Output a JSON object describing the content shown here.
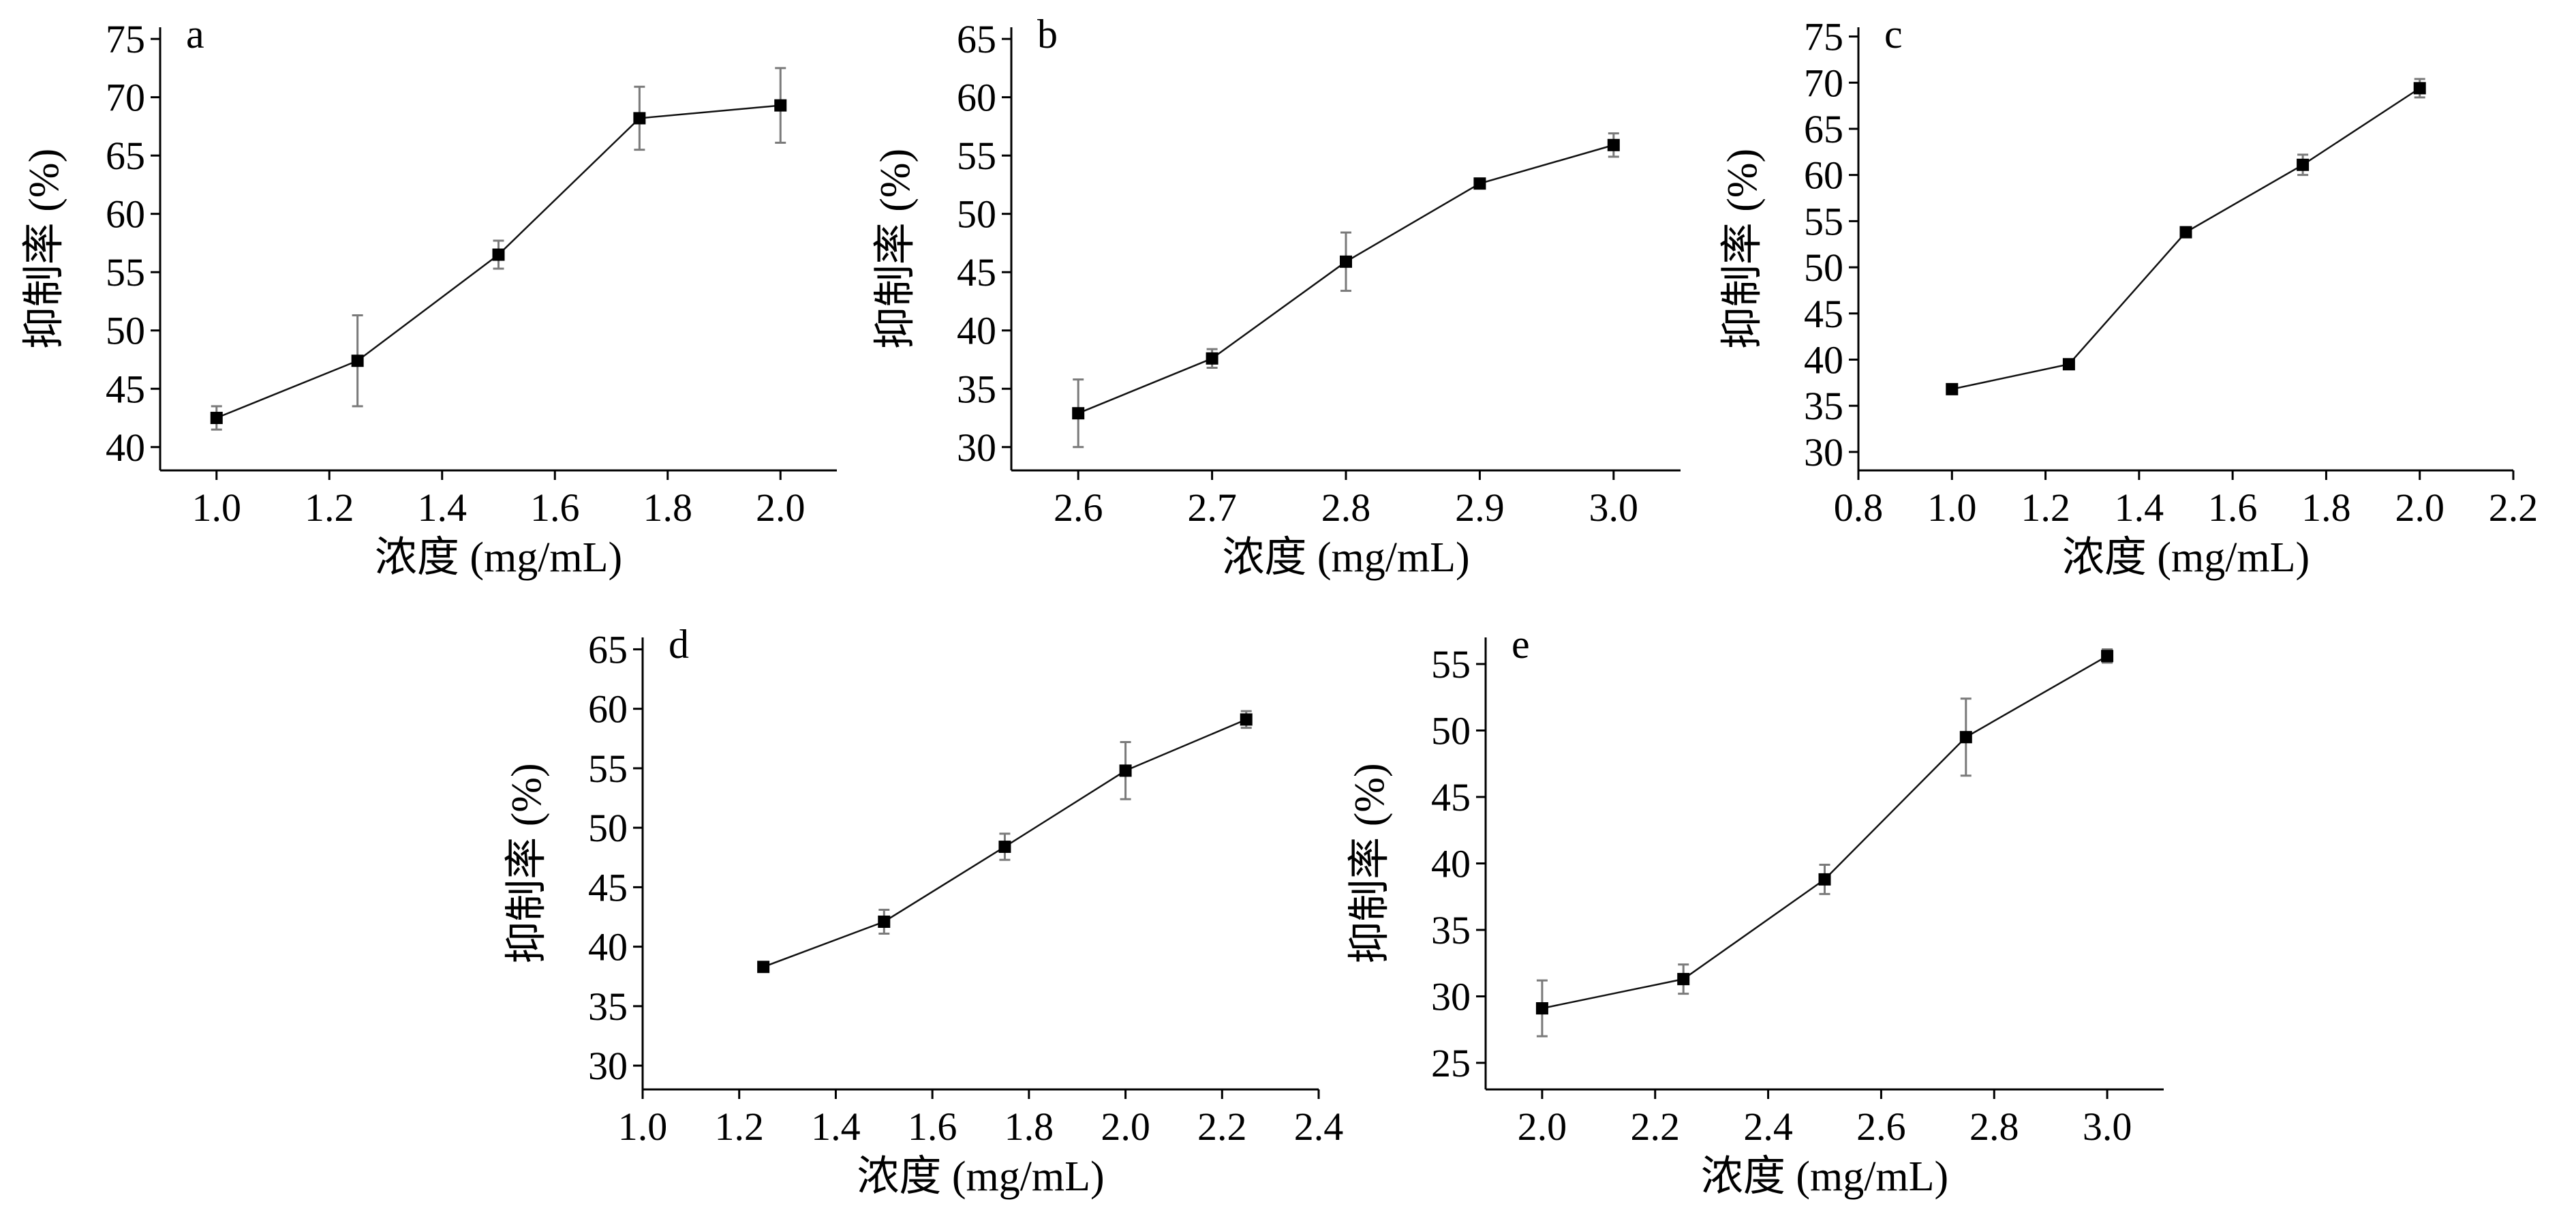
{
  "chart_data": [
    {
      "type": "line",
      "panel_label": "a",
      "xlabel": "浓度 (mg/mL)",
      "ylabel": "抑制率 (%)",
      "xlim": [
        0.9,
        2.1
      ],
      "ylim": [
        38,
        76
      ],
      "xticks": [
        1.0,
        1.2,
        1.4,
        1.6,
        1.8,
        2.0
      ],
      "xtick_labels": [
        "1.0",
        "1.2",
        "1.4",
        "1.6",
        "1.8",
        "2.0"
      ],
      "yticks": [
        40,
        45,
        50,
        55,
        60,
        65,
        70,
        75
      ],
      "ytick_labels": [
        "40",
        "45",
        "50",
        "55",
        "60",
        "65",
        "70",
        "75"
      ],
      "series": [
        {
          "x": [
            1.0,
            1.25,
            1.5,
            1.75,
            2.0
          ],
          "y": [
            42.5,
            47.4,
            56.5,
            68.2,
            69.3
          ],
          "err": [
            1.0,
            3.9,
            1.2,
            2.7,
            3.2
          ]
        }
      ]
    },
    {
      "type": "line",
      "panel_label": "b",
      "xlabel": "浓度 (mg/mL)",
      "ylabel": "抑制率 (%)",
      "xlim": [
        2.55,
        3.05
      ],
      "ylim": [
        28,
        66
      ],
      "xticks": [
        2.6,
        2.7,
        2.8,
        2.9,
        3.0
      ],
      "xtick_labels": [
        "2.6",
        "2.7",
        "2.8",
        "2.9",
        "3.0"
      ],
      "yticks": [
        30,
        35,
        40,
        45,
        50,
        55,
        60,
        65
      ],
      "ytick_labels": [
        "30",
        "35",
        "40",
        "45",
        "50",
        "55",
        "60",
        "65"
      ],
      "series": [
        {
          "x": [
            2.6,
            2.7,
            2.8,
            2.9,
            3.0
          ],
          "y": [
            32.9,
            37.6,
            45.9,
            52.6,
            55.9
          ],
          "err": [
            2.9,
            0.8,
            2.5,
            0.4,
            1.0
          ]
        }
      ]
    },
    {
      "type": "line",
      "panel_label": "c",
      "xlabel": "浓度 (mg/mL)",
      "ylabel": "抑制率 (%)",
      "xlim": [
        0.8,
        2.2
      ],
      "ylim": [
        28,
        76
      ],
      "xticks": [
        0.8,
        1.0,
        1.2,
        1.4,
        1.6,
        1.8,
        2.0,
        2.2
      ],
      "xtick_labels": [
        "0.8",
        "1.0",
        "1.2",
        "1.4",
        "1.6",
        "1.8",
        "2.0",
        "2.2"
      ],
      "yticks": [
        30,
        35,
        40,
        45,
        50,
        55,
        60,
        65,
        70,
        75
      ],
      "ytick_labels": [
        "30",
        "35",
        "40",
        "45",
        "50",
        "55",
        "60",
        "65",
        "70",
        "75"
      ],
      "series": [
        {
          "x": [
            1.0,
            1.25,
            1.5,
            1.75,
            2.0
          ],
          "y": [
            36.8,
            39.5,
            53.8,
            61.1,
            69.4
          ],
          "err": [
            0.4,
            0.4,
            0.5,
            1.1,
            1.0
          ]
        }
      ]
    },
    {
      "type": "line",
      "panel_label": "d",
      "xlabel": "浓度 (mg/mL)",
      "ylabel": "抑制率 (%)",
      "xlim": [
        1.0,
        2.4
      ],
      "ylim": [
        28,
        66
      ],
      "xticks": [
        1.0,
        1.2,
        1.4,
        1.6,
        1.8,
        2.0,
        2.2,
        2.4
      ],
      "xtick_labels": [
        "1.0",
        "1.2",
        "1.4",
        "1.6",
        "1.8",
        "2.0",
        "2.2",
        "2.4"
      ],
      "yticks": [
        30,
        35,
        40,
        45,
        50,
        55,
        60,
        65
      ],
      "ytick_labels": [
        "30",
        "35",
        "40",
        "45",
        "50",
        "55",
        "60",
        "65"
      ],
      "series": [
        {
          "x": [
            1.25,
            1.5,
            1.75,
            2.0,
            2.25
          ],
          "y": [
            38.3,
            42.1,
            48.4,
            54.8,
            59.1
          ],
          "err": [
            0.3,
            1.0,
            1.1,
            2.4,
            0.7
          ]
        }
      ]
    },
    {
      "type": "line",
      "panel_label": "e",
      "xlabel": "浓度 (mg/mL)",
      "ylabel": "抑制率 (%)",
      "xlim": [
        1.9,
        3.1
      ],
      "ylim": [
        23,
        57
      ],
      "xticks": [
        2.0,
        2.2,
        2.4,
        2.6,
        2.8,
        3.0
      ],
      "xtick_labels": [
        "2.0",
        "2.2",
        "2.4",
        "2.6",
        "2.8",
        "3.0"
      ],
      "yticks": [
        25,
        30,
        35,
        40,
        45,
        50,
        55
      ],
      "ytick_labels": [
        "25",
        "30",
        "35",
        "40",
        "45",
        "50",
        "55"
      ],
      "series": [
        {
          "x": [
            2.0,
            2.25,
            2.5,
            2.75,
            3.0
          ],
          "y": [
            29.1,
            31.3,
            38.8,
            49.5,
            55.6
          ],
          "err": [
            2.1,
            1.1,
            1.1,
            2.9,
            0.5
          ]
        }
      ]
    }
  ]
}
